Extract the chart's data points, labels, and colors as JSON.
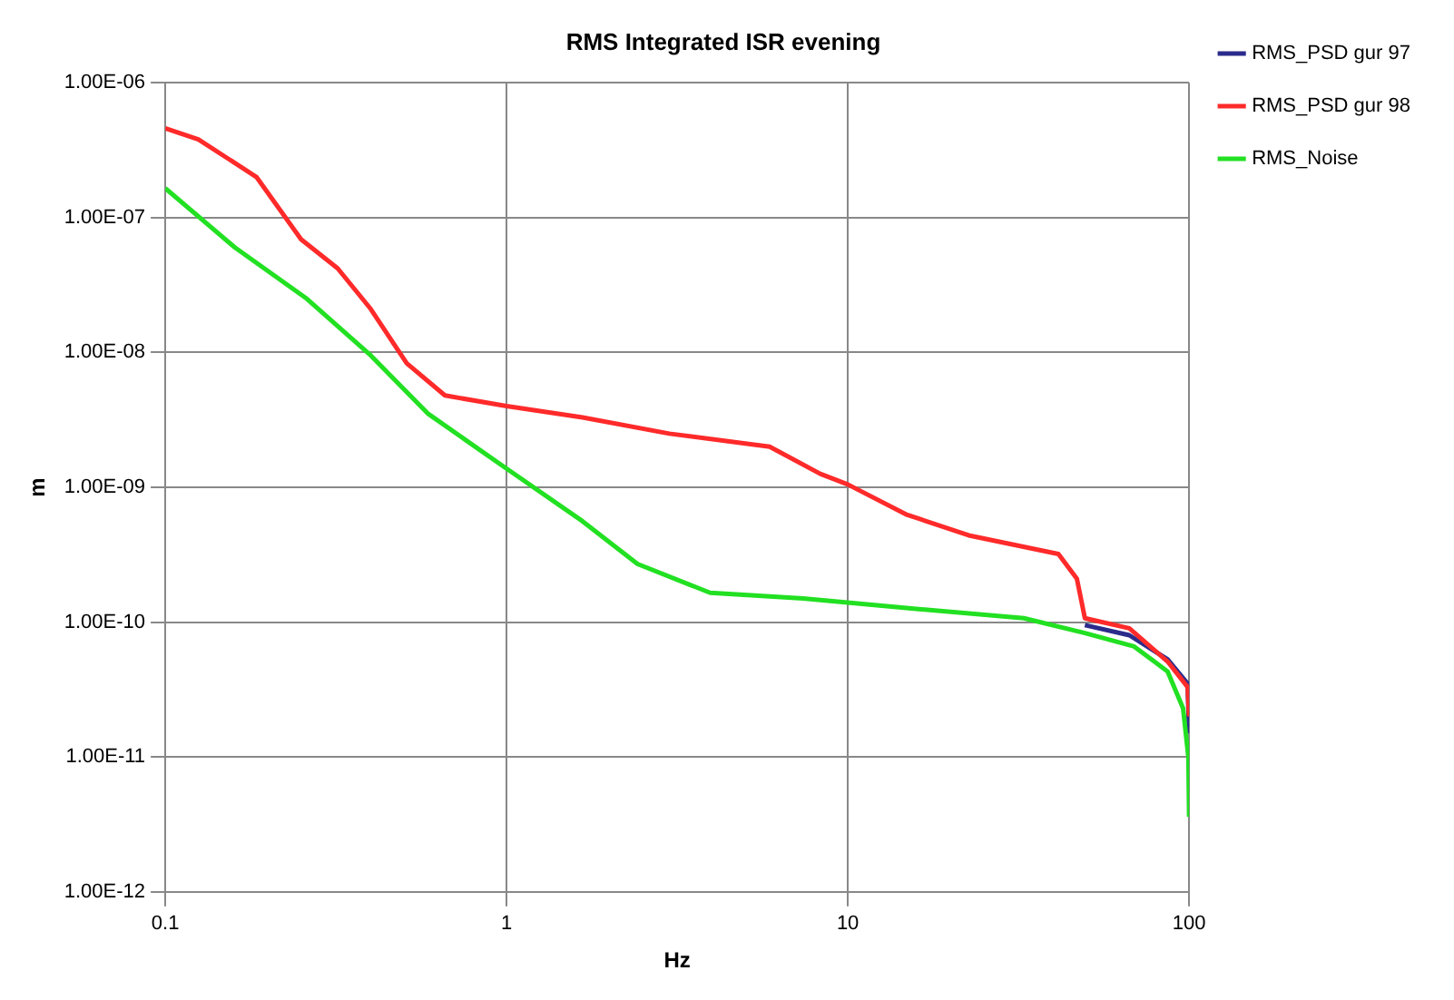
{
  "chart_data": {
    "type": "line",
    "title": "RMS Integrated ISR evening",
    "xlabel": "Hz",
    "ylabel": "m",
    "log": "xy",
    "grid": true,
    "legend": "top right",
    "marker": "none",
    "line_style": "solid",
    "xlim": [
      0.1,
      100
    ],
    "xticks": [
      0.1,
      1,
      10,
      100
    ],
    "ylim": [
      1e-12,
      1e-06
    ],
    "yticks": [
      {
        "value": 1e-12,
        "label": "1.00E-12"
      },
      {
        "value": 1e-11,
        "label": "1.00E-11"
      },
      {
        "value": 1e-10,
        "label": "1.00E-10"
      },
      {
        "value": 1e-09,
        "label": "1.00E-09"
      },
      {
        "value": 1e-08,
        "label": "1.00E-08"
      },
      {
        "value": 1e-07,
        "label": "1.00E-07"
      },
      {
        "value": 1e-06,
        "label": "1.00E-06"
      }
    ],
    "series": [
      {
        "name": "RMS_PSD gur 97",
        "color": "#2b2b8c",
        "x": [
          49.5,
          66.8,
          86.5,
          99,
          100
        ],
        "values": [
          9.5e-11,
          8e-11,
          5.3e-11,
          3.5e-11,
          1.5e-11
        ]
      },
      {
        "name": "RMS_PSD gur 98",
        "color": "#ff2a2a",
        "x": [
          0.1,
          0.125,
          0.185,
          0.25,
          0.32,
          0.4,
          0.51,
          0.66,
          1.0,
          1.67,
          3.0,
          5.9,
          8.3,
          10,
          14.8,
          22.6,
          41.4,
          46.9,
          49.5,
          66.8,
          86.5,
          99,
          100
        ],
        "values": [
          4.6e-07,
          3.8e-07,
          2e-07,
          6.9e-08,
          4.2e-08,
          2.1e-08,
          8.3e-09,
          4.8e-09,
          4e-09,
          3.3e-09,
          2.5e-09,
          2e-09,
          1.26e-09,
          1.05e-09,
          6.3e-10,
          4.4e-10,
          3.2e-10,
          2.1e-10,
          1.07e-10,
          9e-11,
          5.1e-11,
          3.3e-11,
          2e-11
        ]
      },
      {
        "name": "RMS_Noise",
        "color": "#22e022",
        "x": [
          0.1,
          0.16,
          0.26,
          0.4,
          0.59,
          0.99,
          1.67,
          2.42,
          3.95,
          7.4,
          15.6,
          32.8,
          49.5,
          69,
          86.5,
          96,
          99.5,
          100
        ],
        "values": [
          1.65e-07,
          6e-08,
          2.5e-08,
          9.5e-09,
          3.5e-09,
          1.4e-09,
          5.6e-10,
          2.7e-10,
          1.65e-10,
          1.5e-10,
          1.26e-10,
          1.07e-10,
          8.3e-11,
          6.6e-11,
          4.3e-11,
          2.3e-11,
          1e-11,
          3.6e-12
        ]
      }
    ]
  }
}
